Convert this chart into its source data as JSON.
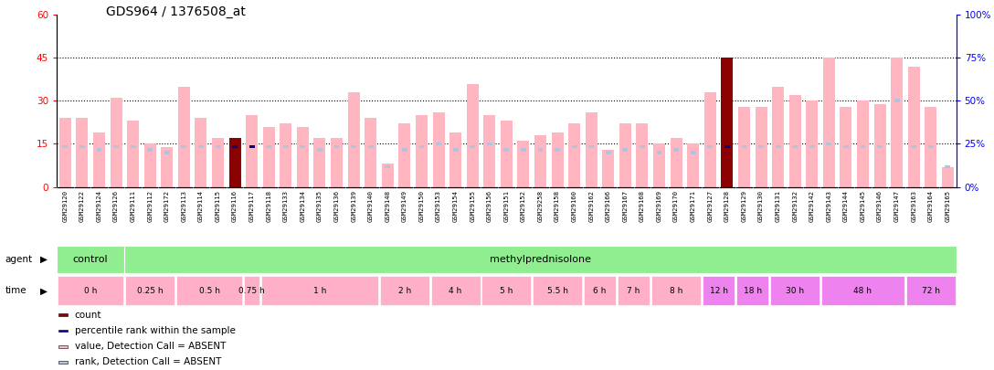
{
  "title": "GDS964 / 1376508_at",
  "samples": [
    "GSM29120",
    "GSM29122",
    "GSM29124",
    "GSM29126",
    "GSM29111",
    "GSM29112",
    "GSM29172",
    "GSM29113",
    "GSM29114",
    "GSM29115",
    "GSM29116",
    "GSM29117",
    "GSM29118",
    "GSM29133",
    "GSM29134",
    "GSM29135",
    "GSM29136",
    "GSM29139",
    "GSM29140",
    "GSM29148",
    "GSM29149",
    "GSM29150",
    "GSM29153",
    "GSM29154",
    "GSM29155",
    "GSM29156",
    "GSM29151",
    "GSM29152",
    "GSM29258",
    "GSM29158",
    "GSM29160",
    "GSM29162",
    "GSM29166",
    "GSM29167",
    "GSM29168",
    "GSM29169",
    "GSM29170",
    "GSM29171",
    "GSM29127",
    "GSM29128",
    "GSM29129",
    "GSM29130",
    "GSM29131",
    "GSM29132",
    "GSM29142",
    "GSM29143",
    "GSM29144",
    "GSM29145",
    "GSM29146",
    "GSM29147",
    "GSM29163",
    "GSM29164",
    "GSM29165"
  ],
  "pink_values": [
    24,
    24,
    19,
    31,
    23,
    15,
    14,
    35,
    24,
    17,
    17,
    25,
    21,
    22,
    21,
    17,
    17,
    33,
    24,
    8,
    22,
    25,
    26,
    19,
    36,
    25,
    23,
    16,
    18,
    19,
    22,
    26,
    13,
    22,
    22,
    15,
    17,
    15,
    33,
    45,
    28,
    28,
    35,
    32,
    30,
    45,
    28,
    30,
    29,
    45,
    42,
    28,
    7
  ],
  "blue_values": [
    14,
    14,
    13,
    14,
    14,
    13,
    12,
    14,
    14,
    14,
    14,
    14,
    14,
    14,
    14,
    13,
    14,
    14,
    14,
    7,
    13,
    14,
    15,
    13,
    14,
    15,
    13,
    13,
    13,
    13,
    14,
    14,
    12,
    13,
    14,
    12,
    13,
    12,
    14,
    14,
    14,
    14,
    14,
    14,
    14,
    15,
    14,
    14,
    14,
    30,
    14,
    14,
    7
  ],
  "dark_red_indices": [
    10,
    39
  ],
  "blue_dot_indices": [
    11
  ],
  "ylim_left": [
    0,
    60
  ],
  "ylim_right": [
    0,
    100
  ],
  "yticks_left": [
    0,
    15,
    30,
    45,
    60
  ],
  "yticks_right": [
    0,
    25,
    50,
    75,
    100
  ],
  "color_pink": "#FFB6C1",
  "color_lightblue": "#B0C4DE",
  "color_darkred": "#8B0000",
  "color_blue": "#00008B",
  "background_color": "#FFFFFF",
  "left_axis_color": "#FF0000",
  "right_axis_color": "#0000FF",
  "bar_width": 0.7,
  "control_color": "#90EE90",
  "methyl_color": "#90EE90",
  "time_color_pink": "#FFB0C8",
  "time_color_violet": "#EE82EE",
  "sample_row_bg": "#D3D3D3",
  "time_groups": [
    {
      "label": "0 h",
      "start": 0,
      "end": 4,
      "violet": false
    },
    {
      "label": "0.25 h",
      "start": 4,
      "end": 7,
      "violet": false
    },
    {
      "label": "0.5 h",
      "start": 7,
      "end": 11,
      "violet": false
    },
    {
      "label": "0.75 h",
      "start": 11,
      "end": 12,
      "violet": false
    },
    {
      "label": "1 h",
      "start": 12,
      "end": 19,
      "violet": false
    },
    {
      "label": "2 h",
      "start": 19,
      "end": 22,
      "violet": false
    },
    {
      "label": "4 h",
      "start": 22,
      "end": 25,
      "violet": false
    },
    {
      "label": "5 h",
      "start": 25,
      "end": 28,
      "violet": false
    },
    {
      "label": "5.5 h",
      "start": 28,
      "end": 31,
      "violet": false
    },
    {
      "label": "6 h",
      "start": 31,
      "end": 33,
      "violet": false
    },
    {
      "label": "7 h",
      "start": 33,
      "end": 35,
      "violet": false
    },
    {
      "label": "8 h",
      "start": 35,
      "end": 38,
      "violet": false
    },
    {
      "label": "12 h",
      "start": 38,
      "end": 40,
      "violet": true
    },
    {
      "label": "18 h",
      "start": 40,
      "end": 42,
      "violet": true
    },
    {
      "label": "30 h",
      "start": 42,
      "end": 45,
      "violet": true
    },
    {
      "label": "48 h",
      "start": 45,
      "end": 50,
      "violet": true
    },
    {
      "label": "72 h",
      "start": 50,
      "end": 53,
      "violet": true
    }
  ],
  "legend_items": [
    {
      "color": "#8B0000",
      "label": "count"
    },
    {
      "color": "#00008B",
      "label": "percentile rank within the sample"
    },
    {
      "color": "#FFB6C1",
      "label": "value, Detection Call = ABSENT"
    },
    {
      "color": "#B0C4DE",
      "label": "rank, Detection Call = ABSENT"
    }
  ]
}
